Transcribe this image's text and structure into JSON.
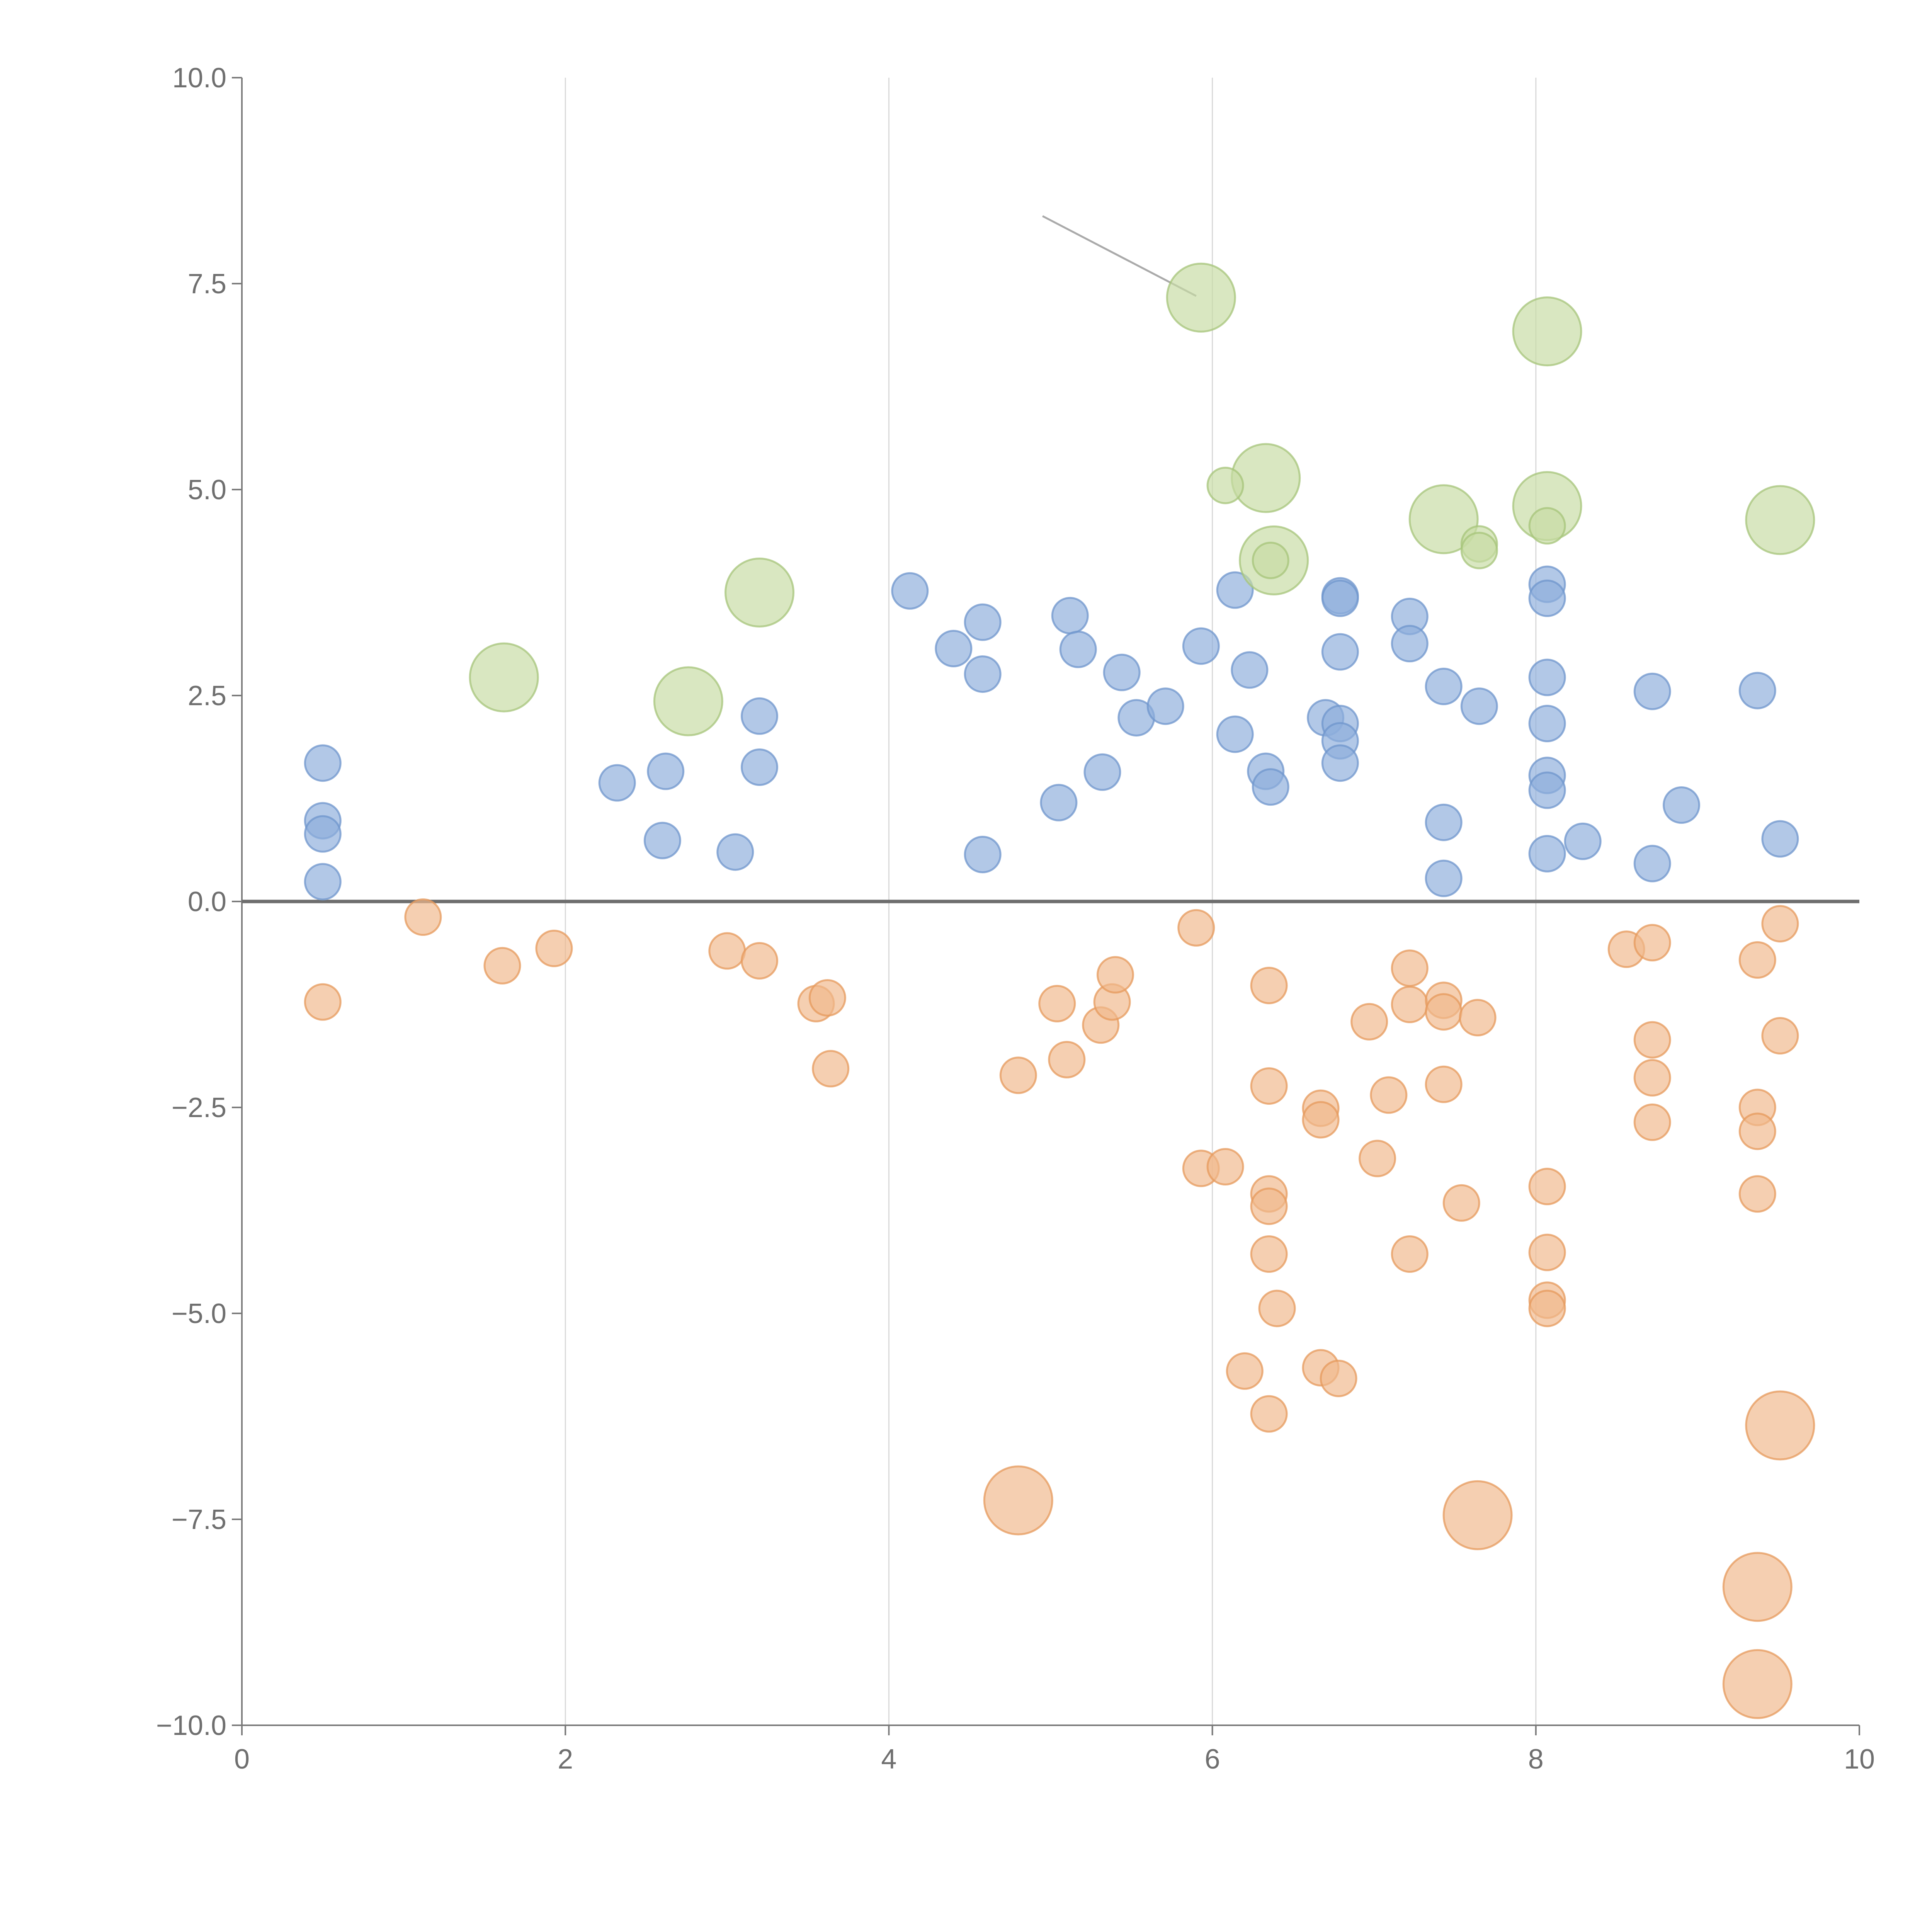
{
  "chart_data": {
    "type": "scatter",
    "title": "",
    "xlabel": "",
    "ylabel": "",
    "xlim": [
      0,
      10
    ],
    "ylim": [
      -10,
      10
    ],
    "x_ticks": [
      0,
      2,
      4,
      6,
      8,
      10
    ],
    "x_tick_labels": [
      "0",
      "2",
      "4",
      "6",
      "8",
      "10"
    ],
    "y_ticks": [
      10,
      7.5,
      5,
      2.5,
      0,
      -2.5,
      -5,
      -7.5,
      -10
    ],
    "y_tick_labels": [
      "10.0",
      "7.5",
      "5.0",
      "2.5",
      "0.0",
      "−2.5",
      "−5.0",
      "−7.5",
      "−10.0"
    ],
    "grid": "vertical",
    "zero_line": 0,
    "series": [
      {
        "name": "blue",
        "color": "#8eaedc",
        "stroke": "#6f95cc",
        "size": 1,
        "points": [
          [
            0.5,
            1.68
          ],
          [
            0.5,
            0.98
          ],
          [
            0.5,
            0.82
          ],
          [
            0.5,
            0.24
          ],
          [
            2.32,
            1.44
          ],
          [
            2.62,
            1.58
          ],
          [
            2.6,
            0.74
          ],
          [
            3.05,
            0.6
          ],
          [
            3.2,
            2.25
          ],
          [
            3.2,
            1.63
          ],
          [
            4.13,
            3.77
          ],
          [
            4.4,
            3.07
          ],
          [
            4.58,
            3.39
          ],
          [
            4.58,
            2.76
          ],
          [
            4.58,
            0.57
          ],
          [
            5.05,
            1.2
          ],
          [
            5.12,
            3.47
          ],
          [
            5.17,
            3.06
          ],
          [
            5.32,
            1.57
          ],
          [
            5.44,
            2.78
          ],
          [
            5.53,
            2.23
          ],
          [
            5.71,
            2.37
          ],
          [
            5.93,
            3.1
          ],
          [
            6.14,
            3.78
          ],
          [
            6.14,
            2.03
          ],
          [
            6.23,
            2.81
          ],
          [
            6.33,
            1.58
          ],
          [
            6.36,
            1.39
          ],
          [
            6.7,
            2.23
          ],
          [
            6.79,
            3.71
          ],
          [
            6.79,
            3.68
          ],
          [
            6.79,
            3.03
          ],
          [
            6.79,
            2.16
          ],
          [
            6.79,
            1.95
          ],
          [
            6.79,
            1.68
          ],
          [
            7.22,
            3.46
          ],
          [
            7.22,
            3.13
          ],
          [
            7.43,
            2.61
          ],
          [
            7.43,
            0.96
          ],
          [
            7.43,
            0.28
          ],
          [
            7.65,
            2.37
          ],
          [
            8.07,
            3.85
          ],
          [
            8.07,
            3.68
          ],
          [
            8.07,
            2.72
          ],
          [
            8.07,
            2.16
          ],
          [
            8.07,
            1.53
          ],
          [
            8.07,
            1.35
          ],
          [
            8.07,
            0.58
          ],
          [
            8.29,
            0.73
          ],
          [
            8.72,
            2.55
          ],
          [
            8.72,
            0.46
          ],
          [
            8.9,
            1.17
          ],
          [
            9.37,
            2.56
          ],
          [
            9.51,
            0.76
          ]
        ]
      },
      {
        "name": "orange",
        "color": "#f0b88c",
        "stroke": "#e59a5c",
        "size": 1,
        "points": [
          [
            0.5,
            -1.22
          ],
          [
            1.12,
            -0.19
          ],
          [
            1.61,
            -0.78
          ],
          [
            1.93,
            -0.57
          ],
          [
            3.0,
            -0.6
          ],
          [
            3.2,
            -0.72
          ],
          [
            3.55,
            -1.24
          ],
          [
            3.62,
            -1.17
          ],
          [
            3.64,
            -2.03
          ],
          [
            4.8,
            -2.11
          ],
          [
            5.04,
            -1.24
          ],
          [
            5.1,
            -1.92
          ],
          [
            5.31,
            -1.5
          ],
          [
            5.38,
            -1.22
          ],
          [
            5.4,
            -0.89
          ],
          [
            5.9,
            -0.32
          ],
          [
            5.93,
            -3.24
          ],
          [
            6.08,
            -3.22
          ],
          [
            6.2,
            -5.7
          ],
          [
            6.35,
            -1.02
          ],
          [
            6.35,
            -2.24
          ],
          [
            6.35,
            -3.55
          ],
          [
            6.35,
            -3.7
          ],
          [
            6.35,
            -4.28
          ],
          [
            6.35,
            -6.22
          ],
          [
            6.4,
            -4.94
          ],
          [
            6.67,
            -5.66
          ],
          [
            6.67,
            -2.51
          ],
          [
            6.67,
            -2.65
          ],
          [
            6.78,
            -5.79
          ],
          [
            6.97,
            -1.46
          ],
          [
            7.02,
            -3.12
          ],
          [
            7.09,
            -2.35
          ],
          [
            7.22,
            -0.81
          ],
          [
            7.22,
            -1.25
          ],
          [
            7.22,
            -4.28
          ],
          [
            7.43,
            -1.2
          ],
          [
            7.43,
            -1.34
          ],
          [
            7.43,
            -2.22
          ],
          [
            7.54,
            -3.66
          ],
          [
            7.64,
            -1.41
          ],
          [
            8.07,
            -3.46
          ],
          [
            8.07,
            -4.26
          ],
          [
            8.07,
            -4.84
          ],
          [
            8.07,
            -4.94
          ],
          [
            8.56,
            -0.58
          ],
          [
            8.72,
            -0.5
          ],
          [
            8.72,
            -1.68
          ],
          [
            8.72,
            -2.14
          ],
          [
            8.72,
            -2.68
          ],
          [
            9.37,
            -0.71
          ],
          [
            9.51,
            -0.27
          ],
          [
            9.51,
            -1.63
          ],
          [
            9.37,
            -2.5
          ],
          [
            9.37,
            -2.79
          ],
          [
            9.37,
            -3.55
          ]
        ]
      },
      {
        "name": "orange-large",
        "color": "#f0b88c",
        "stroke": "#e59a5c",
        "size": 2,
        "points": [
          [
            4.8,
            -7.27
          ],
          [
            7.64,
            -7.45
          ],
          [
            9.51,
            -6.36
          ],
          [
            9.37,
            -8.32
          ],
          [
            9.37,
            -9.5
          ]
        ]
      },
      {
        "name": "green",
        "color": "#c7dba3",
        "stroke": "#a6c47a",
        "size": 2,
        "points": [
          [
            1.62,
            2.72
          ],
          [
            2.76,
            2.43
          ],
          [
            3.2,
            3.75
          ],
          [
            5.93,
            7.33
          ],
          [
            6.33,
            5.14
          ],
          [
            6.38,
            4.14
          ],
          [
            7.43,
            4.64
          ],
          [
            8.07,
            6.92
          ],
          [
            8.07,
            4.8
          ],
          [
            9.51,
            4.63
          ]
        ]
      },
      {
        "name": "green-small",
        "color": "#c7dba3",
        "stroke": "#a6c47a",
        "size": 1,
        "points": [
          [
            6.08,
            5.05
          ],
          [
            6.36,
            4.14
          ],
          [
            7.65,
            4.34
          ],
          [
            7.65,
            4.26
          ],
          [
            8.07,
            4.56
          ]
        ]
      }
    ],
    "annotation_lines": [
      {
        "color": "#aaaaaa",
        "from": [
          4.95,
          8.32
        ],
        "to": [
          5.9,
          7.35
        ]
      }
    ]
  }
}
